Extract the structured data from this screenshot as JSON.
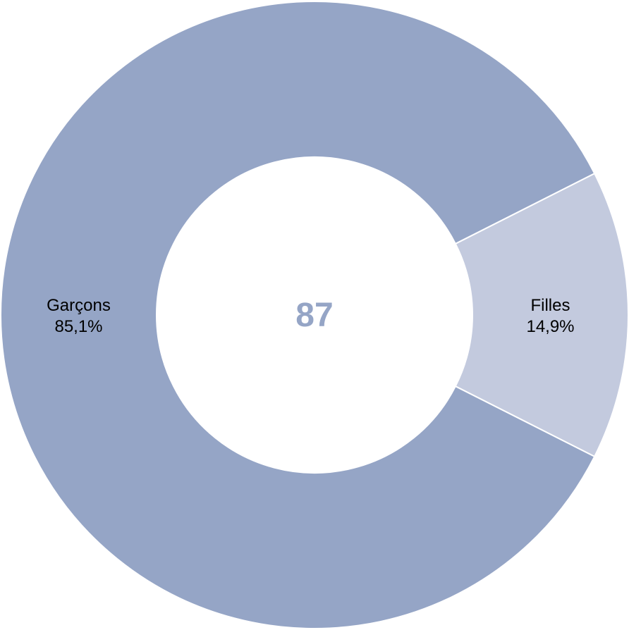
{
  "chart_data": {
    "type": "pie",
    "variant": "donut",
    "center_text": "87",
    "slices": [
      {
        "label": "Garçons",
        "percent_label": "85,1%",
        "value": 85.1,
        "color": "#95a5c6"
      },
      {
        "label": "Filles",
        "percent_label": "14,9%",
        "value": 14.9,
        "color": "#c3cade"
      }
    ],
    "legend": "none",
    "colors": {
      "center_text": "#95a5c6",
      "separator": "#ffffff",
      "background": "#ffffff"
    }
  }
}
